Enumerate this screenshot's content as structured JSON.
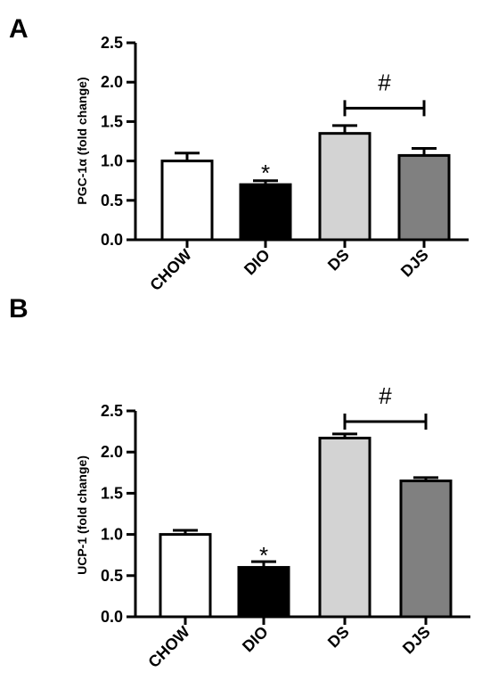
{
  "chart_data": [
    {
      "type": "bar",
      "panel_label": "A",
      "categories": [
        "CHOW",
        "DIO",
        "DS",
        "DJS"
      ],
      "values": [
        1.0,
        0.7,
        1.35,
        1.07
      ],
      "errors": [
        0.1,
        0.05,
        0.1,
        0.09
      ],
      "colors": [
        "#ffffff",
        "#000000",
        "#d3d3d3",
        "#808080"
      ],
      "ylabel": "PGC-1α (fold change)",
      "ylim": [
        0,
        2.5
      ],
      "yticks": [
        "0.0",
        "0.5",
        "1.0",
        "1.5",
        "2.0",
        "2.5"
      ],
      "grid": false,
      "annotations": [
        {
          "text": "*",
          "category": "DIO",
          "y": 0.88
        },
        {
          "text": "#",
          "bracket": [
            "DS",
            "DJS"
          ],
          "y": 1.67
        }
      ]
    },
    {
      "type": "bar",
      "panel_label": "B",
      "categories": [
        "CHOW",
        "DIO",
        "DS",
        "DJS"
      ],
      "values": [
        1.0,
        0.6,
        2.17,
        1.65
      ],
      "errors": [
        0.05,
        0.07,
        0.05,
        0.04
      ],
      "colors": [
        "#ffffff",
        "#000000",
        "#d3d3d3",
        "#808080"
      ],
      "ylabel": "UCP-1 (fold change)",
      "ylim": [
        0,
        2.5
      ],
      "yticks": [
        "0.0",
        "0.5",
        "1.0",
        "1.5",
        "2.0",
        "2.5"
      ],
      "grid": false,
      "annotations": [
        {
          "text": "*",
          "category": "DIO",
          "y": 0.78
        },
        {
          "text": "#",
          "bracket": [
            "DS",
            "DJS"
          ],
          "y": 2.37
        }
      ]
    }
  ]
}
